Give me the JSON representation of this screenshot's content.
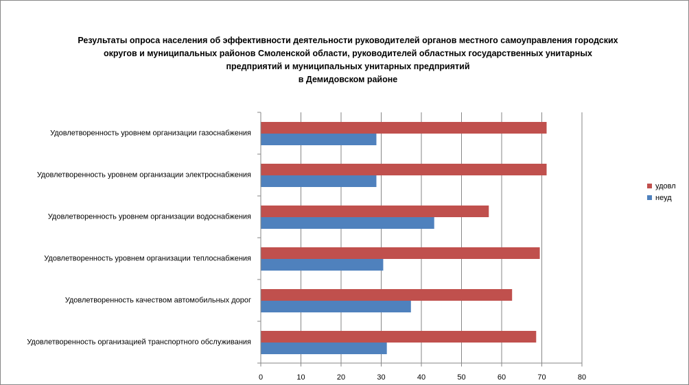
{
  "chart_data": {
    "type": "bar",
    "orientation": "horizontal",
    "title_lines": [
      "Результаты опроса населения об эффективности деятельности руководителей органов местного самоуправления городских",
      "округов и муниципальных районов Смоленской области, руководителей областных государственных унитарных",
      "предприятий и муниципальных унитарных предприятий",
      "в Демидовском районе"
    ],
    "categories": [
      "Удовлетворенность уровнем организации газоснабжения",
      "Удовлетворенность уровнем организации электроснабжения",
      "Удовлетворенность уровнем организации водоснабжения",
      "Удовлетворенность уровнем организации теплоснабжения",
      "Удовлетворенность качеством автомобильных дорог",
      "Удовлетворенность организацией транспортного обслуживания"
    ],
    "series": [
      {
        "name": "удовл",
        "color": "#c0504d",
        "values": [
          71.2,
          71.2,
          56.8,
          69.5,
          62.6,
          68.6
        ]
      },
      {
        "name": "неуд",
        "color": "#4f81bd",
        "values": [
          28.8,
          28.8,
          43.2,
          30.5,
          37.4,
          31.4
        ]
      }
    ],
    "xlim": [
      0,
      80
    ],
    "xticks": [
      0,
      10,
      20,
      30,
      40,
      50,
      60,
      70,
      80
    ],
    "grid": true,
    "legend_position": "right"
  }
}
